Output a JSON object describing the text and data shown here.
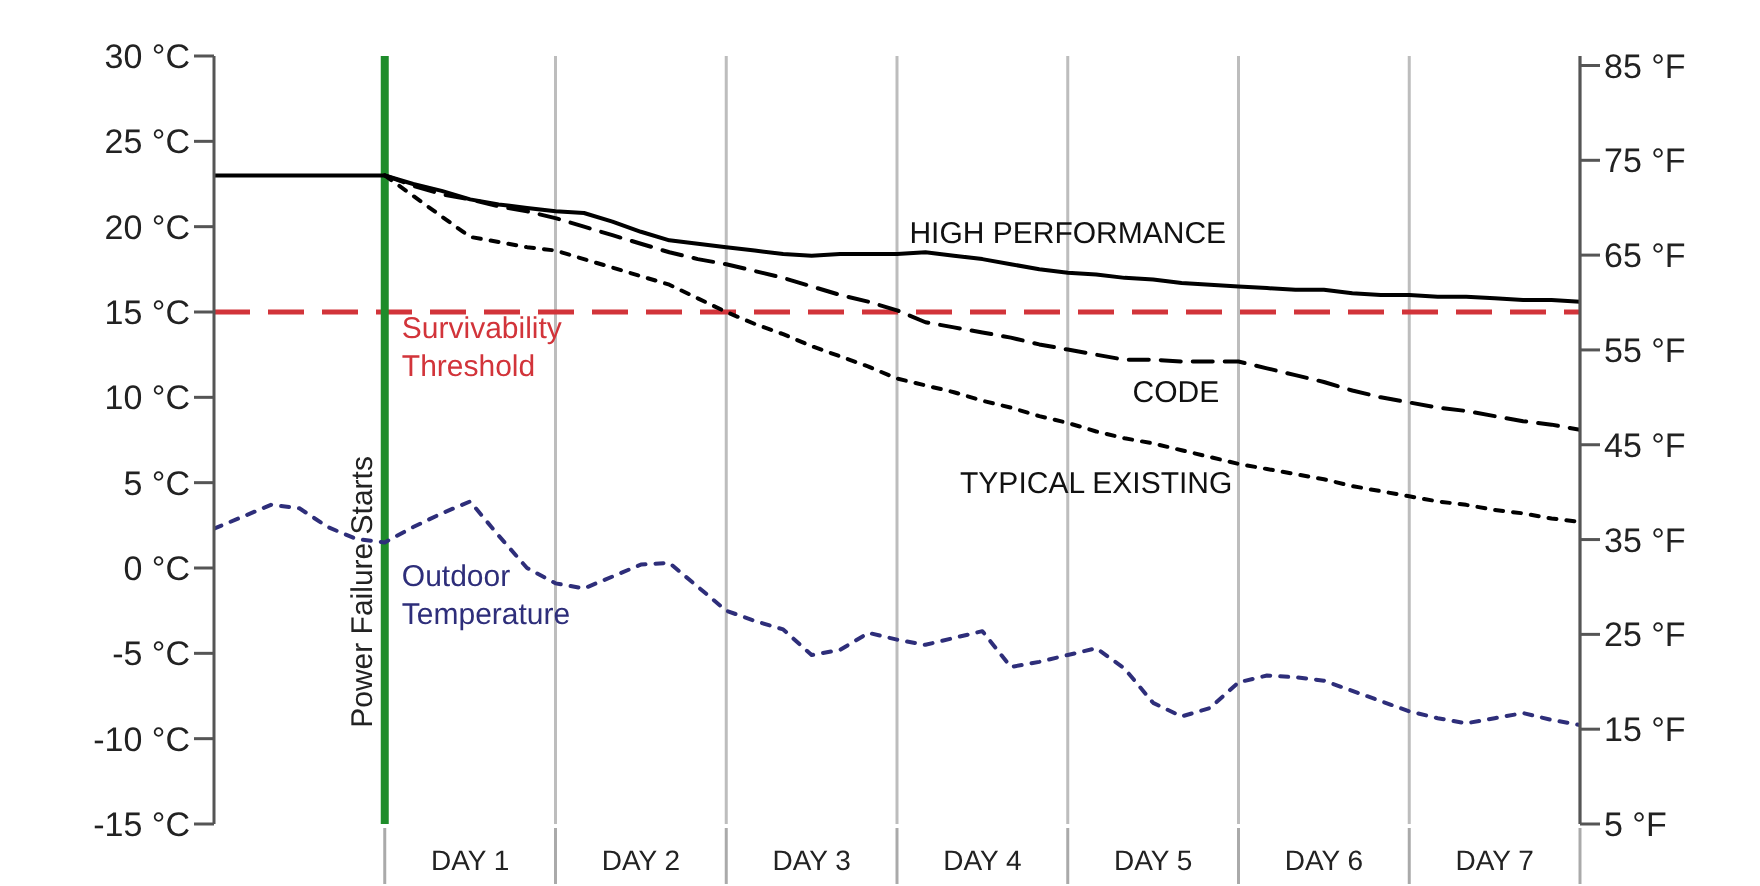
{
  "chart_data": {
    "type": "line",
    "categories": [
      null,
      null,
      null,
      null,
      null,
      null,
      null,
      null,
      null,
      "DAY 1",
      null,
      null,
      null,
      null,
      null,
      "DAY 2",
      null,
      null,
      null,
      null,
      null,
      "DAY 3",
      null,
      null,
      null,
      null,
      null,
      "DAY 4",
      null,
      null,
      null,
      null,
      null,
      "DAY 5",
      null,
      null,
      null,
      null,
      null,
      "DAY 6",
      null,
      null,
      null,
      null,
      null,
      "DAY 7",
      null,
      null,
      null
    ],
    "ylim": [
      -15,
      30
    ],
    "yticks": [
      {
        "value": 30,
        "label": "30 °C"
      },
      {
        "value": 25,
        "label": "25 °C"
      },
      {
        "value": 20,
        "label": "20 °C"
      },
      {
        "value": 15,
        "label": "15 °C"
      },
      {
        "value": 10,
        "label": "10 °C"
      },
      {
        "value": 5,
        "label": "5 °C"
      },
      {
        "value": 0,
        "label": "0 °C"
      },
      {
        "value": -5,
        "label": "-5 °C"
      },
      {
        "value": -10,
        "label": "-10 °C"
      },
      {
        "value": -15,
        "label": "-15 °C"
      }
    ],
    "y2lim": [
      5,
      86
    ],
    "y2ticks": [
      {
        "value": 85,
        "label": "85 °F"
      },
      {
        "value": 75,
        "label": "75 °F"
      },
      {
        "value": 65,
        "label": "65 °F"
      },
      {
        "value": 55,
        "label": "55 °F"
      },
      {
        "value": 45,
        "label": "45 °F"
      },
      {
        "value": 35,
        "label": "35 °F"
      },
      {
        "value": 25,
        "label": "25 °F"
      },
      {
        "value": 15,
        "label": "15 °F"
      },
      {
        "value": 5,
        "label": "5 °F"
      }
    ],
    "grid": "x",
    "series": [
      {
        "name": "HIGH PERFORMANCE",
        "color": "#000000",
        "line_style": "solid",
        "values": [
          23,
          23,
          23,
          23,
          23,
          23,
          23,
          22.5,
          22.1,
          21.6,
          21.3,
          21.1,
          20.9,
          20.8,
          20.3,
          19.7,
          19.2,
          19.0,
          18.8,
          18.6,
          18.4,
          18.3,
          18.4,
          18.4,
          18.4,
          18.5,
          18.3,
          18.1,
          17.8,
          17.5,
          17.3,
          17.2,
          17.0,
          16.9,
          16.7,
          16.6,
          16.5,
          16.4,
          16.3,
          16.3,
          16.1,
          16.0,
          16.0,
          15.9,
          15.9,
          15.8,
          15.7,
          15.7,
          15.6
        ]
      },
      {
        "name": "CODE",
        "color": "#000000",
        "line_style": "dashed",
        "values": [
          null,
          null,
          null,
          null,
          null,
          null,
          23,
          22.4,
          21.9,
          21.6,
          21.2,
          20.9,
          20.5,
          20.0,
          19.5,
          19.0,
          18.5,
          18.1,
          17.8,
          17.4,
          17.0,
          16.5,
          16.0,
          15.6,
          15.1,
          14.4,
          14.1,
          13.8,
          13.5,
          13.1,
          12.8,
          12.5,
          12.2,
          12.2,
          12.1,
          12.1,
          12.1,
          11.7,
          11.3,
          10.9,
          10.4,
          10.0,
          9.7,
          9.4,
          9.2,
          8.9,
          8.6,
          8.4,
          8.1
        ]
      },
      {
        "name": "TYPICAL EXISTING",
        "color": "#000000",
        "line_style": "dotted",
        "values": [
          null,
          null,
          null,
          null,
          null,
          null,
          23,
          21.8,
          20.6,
          19.4,
          19.1,
          18.8,
          18.6,
          18.1,
          17.6,
          17.1,
          16.6,
          15.8,
          15.0,
          14.3,
          13.7,
          13.0,
          12.4,
          11.8,
          11.1,
          10.7,
          10.3,
          9.8,
          9.4,
          8.9,
          8.5,
          8.0,
          7.6,
          7.3,
          6.9,
          6.5,
          6.1,
          5.8,
          5.5,
          5.2,
          4.8,
          4.5,
          4.2,
          3.9,
          3.7,
          3.4,
          3.2,
          2.9,
          2.7
        ]
      },
      {
        "name": "Outdoor Temperature",
        "color": "#2e2e7a",
        "line_style": "dotted",
        "values": [
          2.3,
          3.0,
          3.7,
          3.5,
          2.4,
          1.7,
          1.5,
          2.4,
          3.2,
          3.9,
          1.9,
          0.0,
          -0.9,
          -1.2,
          -0.5,
          0.2,
          0.3,
          -1.1,
          -2.5,
          -3.1,
          -3.6,
          -5.1,
          -4.8,
          -3.8,
          -4.2,
          -4.5,
          -4.1,
          -3.7,
          -5.8,
          -5.5,
          -5.1,
          -4.7,
          -5.9,
          -7.9,
          -8.7,
          -8.2,
          -6.7,
          -6.3,
          -6.4,
          -6.6,
          -7.2,
          -7.8,
          -8.4,
          -8.8,
          -9.1,
          -8.8,
          -8.5,
          -8.9,
          -9.2
        ]
      }
    ],
    "ref_lines": [
      {
        "axis": "y",
        "value": 15,
        "label": "Survivability Threshold",
        "color": "#d2343a",
        "line_style": "dashed"
      }
    ],
    "annotations": [
      "Power Failure Starts"
    ]
  }
}
